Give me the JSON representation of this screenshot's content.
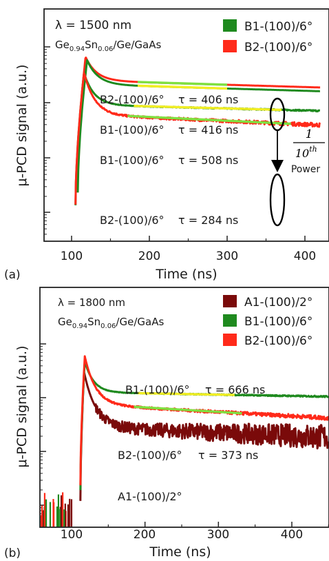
{
  "chart_data": [
    {
      "panel_label": "(a)",
      "type": "line",
      "xlabel": "Time (ns)",
      "ylabel": "μ-PCD signal (a.u.)",
      "y_scale": "log",
      "y_tick_labels_shown": false,
      "xlim": [
        95,
        420
      ],
      "xticks": [
        "100",
        "200",
        "300",
        "400"
      ],
      "wavelength_label": "λ = 1500 nm",
      "structure": {
        "main": "Ge",
        "s1": "0.94",
        "mid": "Sn",
        "s2": "0.06",
        "rest": "/Ge/GaAs"
      },
      "legend": [
        {
          "name": "B1-(100)/6°",
          "color": "#1f8a1f"
        },
        {
          "name": "B2-(100)/6°",
          "color": "#ff2a1a"
        }
      ],
      "series": [
        {
          "id": "a_b2_high",
          "name": "B2-(100)/6°",
          "color": "#ff2a1a",
          "onset": 107,
          "peak_t": 118,
          "peak": 0.83,
          "floor": 0.4,
          "tau_fast": 14,
          "slope": -0.000412,
          "noise": 0.0
        },
        {
          "id": "a_b1_high",
          "name": "B1-(100)/6°",
          "color": "#1f8a1f",
          "onset": 108,
          "peak_t": 120,
          "peak": 0.77,
          "floor": 0.33,
          "tau_fast": 14,
          "slope": -0.000408,
          "noise": 0.0
        },
        {
          "id": "a_b1_low",
          "name": "B1-(100)/6°",
          "color": "#1f8a1f",
          "onset": 105,
          "peak_t": 116,
          "peak": 0.54,
          "floor": -0.04,
          "tau_fast": 13,
          "slope": -0.000355,
          "noise": 0.004
        },
        {
          "id": "a_b2_low",
          "name": "B2-(100)/6°",
          "color": "#ff2a1a",
          "onset": 105,
          "peak_t": 116,
          "peak": 0.55,
          "floor": -0.22,
          "tau_fast": 14,
          "slope": -0.000612,
          "noise": 0.012
        }
      ],
      "fits": [
        {
          "series": "a_b2_high",
          "x": [
            185,
            300
          ],
          "color": "#7fe040"
        },
        {
          "series": "a_b1_high",
          "x": [
            185,
            300
          ],
          "color": "#f2ee24"
        },
        {
          "series": "a_b1_low",
          "x": [
            180,
            370
          ],
          "color": "#f2ee24"
        },
        {
          "series": "a_b2_low",
          "x": [
            172,
            382
          ],
          "color": "#7fe040"
        }
      ],
      "annotations": [
        {
          "label": "B2-(100)/6°",
          "tau": "τ = 406 ns"
        },
        {
          "label": "B1-(100)/6°",
          "tau": "τ = 416 ns"
        },
        {
          "label": "B1-(100)/6°",
          "tau": "τ = 508 ns"
        },
        {
          "label": "B2-(100)/6°",
          "tau": "τ = 284 ns"
        }
      ],
      "power_note": {
        "numerator": "1",
        "denominator": "10",
        "superscript": "th",
        "caption": "Power"
      }
    },
    {
      "panel_label": "(b)",
      "type": "line",
      "xlabel": "Time (ns)",
      "ylabel": "μ-PCD signal (a.u.)",
      "y_scale": "log",
      "y_tick_labels_shown": false,
      "xlim": [
        55,
        450
      ],
      "xticks": [
        "100",
        "200",
        "300",
        "400"
      ],
      "wavelength_label": "λ = 1800 nm",
      "structure": {
        "main": "Ge",
        "s1": "0.94",
        "mid": "Sn",
        "s2": "0.06",
        "rest": "/Ge/GaAs"
      },
      "legend": [
        {
          "name": "A1-(100)/2°",
          "color": "#7a0a0a"
        },
        {
          "name": "B1-(100)/6°",
          "color": "#1f8a1f"
        },
        {
          "name": "B2-(100)/6°",
          "color": "#ff2a1a"
        }
      ],
      "series": [
        {
          "id": "b_a1",
          "name": "A1-(100)/2°",
          "color": "#7a0a0a",
          "onset": 112,
          "peak_t": 117,
          "peak": 0.48,
          "floor": -0.55,
          "tau_fast": 16,
          "slope": -0.00055,
          "noise": 0.075
        },
        {
          "id": "b_b1",
          "name": "B1-(100)/6°",
          "color": "#1f8a1f",
          "onset": 112,
          "peak_t": 118,
          "peak": 0.68,
          "floor": 0.1,
          "tau_fast": 12,
          "slope": -0.00024,
          "noise": 0.004
        },
        {
          "id": "b_b2",
          "name": "B2-(100)/6°",
          "color": "#ff2a1a",
          "onset": 112,
          "peak_t": 118,
          "peak": 0.77,
          "floor": -0.13,
          "tau_fast": 15,
          "slope": -0.00075,
          "noise": 0.012
        }
      ],
      "fits": [
        {
          "series": "b_b1",
          "x": [
            190,
            322
          ],
          "color": "#f2ee24"
        },
        {
          "series": "b_b2",
          "x": [
            185,
            332
          ],
          "color": "#7fe040"
        }
      ],
      "annotations": [
        {
          "label": "B1-(100)/6°",
          "tau": "τ = 666 ns"
        },
        {
          "label": "B2-(100)/6°",
          "tau": "τ = 373 ns"
        },
        {
          "label": "A1-(100)/2°",
          "tau": ""
        }
      ]
    }
  ]
}
